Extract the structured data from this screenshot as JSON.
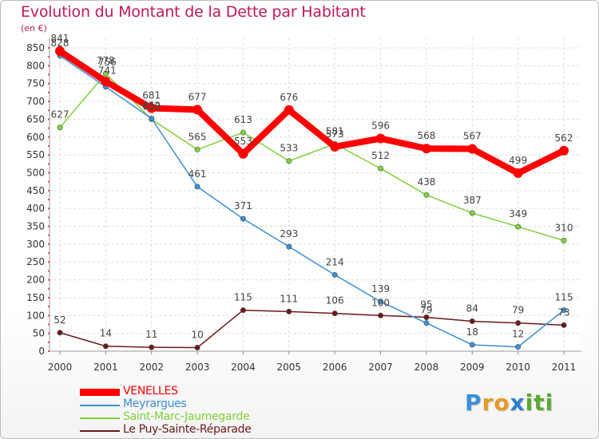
{
  "title": "Evolution du Montant de la Dette par Habitant",
  "unit_label": "(en €)",
  "logo": {
    "letters": [
      "P",
      "r",
      "o",
      "x",
      "i",
      "t",
      "i"
    ],
    "colors": [
      "#3a8fd9",
      "#e39b2a",
      "#e39b2a",
      "#2c7fd0",
      "#5aa832",
      "#5aa832",
      "#5aa832"
    ]
  },
  "chart_data": {
    "type": "line",
    "x": [
      "2000",
      "2001",
      "2002",
      "2003",
      "2004",
      "2005",
      "2006",
      "2007",
      "2008",
      "2009",
      "2010",
      "2011"
    ],
    "ylim": [
      0,
      850
    ],
    "yticks": [
      0,
      50,
      100,
      150,
      200,
      250,
      300,
      350,
      400,
      450,
      500,
      550,
      600,
      650,
      700,
      750,
      800,
      850
    ],
    "grid": true,
    "legend_position": "bottom-left",
    "series": [
      {
        "name": "VENELLES",
        "color": "#ff0000",
        "values": [
          841,
          756,
          681,
          677,
          553,
          676,
          573,
          596,
          568,
          567,
          499,
          562
        ],
        "labels": [
          "841",
          "",
          "681",
          "677",
          "553",
          "676",
          "573",
          "596",
          "568",
          "567",
          "499",
          "562"
        ]
      },
      {
        "name": "Meyrargues",
        "color": "#3c8fd6",
        "values": [
          828,
          741,
          652,
          461,
          371,
          293,
          214,
          139,
          79,
          18,
          12,
          115
        ],
        "labels": [
          "828",
          "",
          "652",
          "461",
          "371",
          "293",
          "214",
          "139",
          "79",
          "18",
          "12",
          "115"
        ]
      },
      {
        "name": "Saint-Marc-Jaumegarde",
        "color": "#7fd23a",
        "values": [
          627,
          778,
          650,
          565,
          613,
          533,
          581,
          512,
          438,
          387,
          349,
          310
        ],
        "labels": [
          "627",
          "778",
          "650",
          "565",
          "613",
          "533",
          "581",
          "512",
          "438",
          "387",
          "349",
          "310"
        ]
      },
      {
        "name": "Le Puy-Sainte-Réparade",
        "color": "#6b1a1a",
        "values": [
          52,
          14,
          11,
          10,
          115,
          111,
          106,
          100,
          95,
          84,
          79,
          73
        ],
        "labels": [
          "52",
          "14",
          "11",
          "10",
          "115",
          "111",
          "106",
          "100",
          "95",
          "84",
          "79",
          "73"
        ]
      }
    ],
    "extra_labels": [
      "756",
      "741"
    ]
  }
}
